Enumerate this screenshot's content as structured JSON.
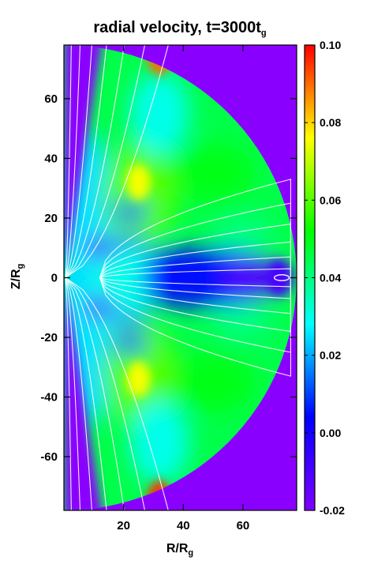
{
  "chart_data": {
    "type": "heatmap",
    "title_main": "radial velocity, t=3000t",
    "title_sub": "g",
    "xlabel_main": "R/R",
    "xlabel_sub": "g",
    "ylabel_main": "Z/R",
    "ylabel_sub": "g",
    "xlim": [
      0,
      78
    ],
    "ylim": [
      -78,
      78
    ],
    "xticks": [
      20,
      40,
      60
    ],
    "yticks": [
      60,
      40,
      20,
      0,
      -20,
      -40,
      -60
    ],
    "colorbar": {
      "range": [
        -0.02,
        0.1
      ],
      "ticks": [
        "0.10",
        "0.08",
        "0.06",
        "0.04",
        "0.02",
        "0.00",
        "-0.02"
      ],
      "tick_values": [
        0.1,
        0.08,
        0.06,
        0.04,
        0.02,
        0.0,
        -0.02
      ],
      "colormap": [
        "#7f00ff",
        "#0000ff",
        "#00ffff",
        "#00ff00",
        "#ffff00",
        "#ff0000"
      ]
    },
    "domain_outer_radius": 78,
    "background_color": "#8a00ff",
    "contour_color": "#ffffff",
    "features": [
      {
        "R": 25,
        "Z": 32,
        "value": 0.075
      },
      {
        "R": 25,
        "Z": -34,
        "value": 0.075
      },
      {
        "R": 72,
        "Z": 0,
        "value": -0.01
      },
      {
        "R": 32,
        "Z": 74,
        "value": 0.09
      },
      {
        "R": 32,
        "Z": -74,
        "value": 0.095
      }
    ]
  }
}
